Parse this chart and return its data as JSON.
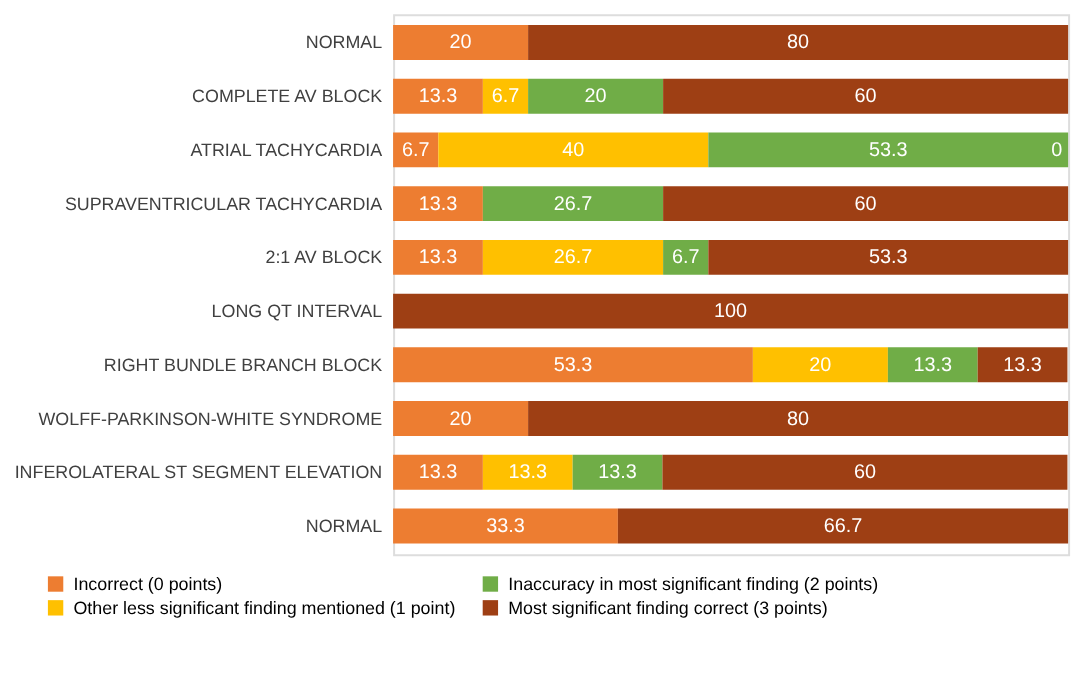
{
  "chart_data": {
    "type": "bar",
    "orientation": "horizontal",
    "stacked": true,
    "legend": "bottom",
    "categories": [
      "NORMAL",
      "COMPLETE AV BLOCK",
      "ATRIAL TACHYCARDIA",
      "SUPRAVENTRICULAR TACHYCARDIA",
      "2:1 AV BLOCK",
      "LONG QT INTERVAL",
      "RIGHT BUNDLE BRANCH BLOCK",
      "WOLFF-PARKINSON-WHITE SYNDROME",
      "INFEROLATERAL ST SEGMENT ELEVATION",
      "NORMAL"
    ],
    "series": [
      {
        "name": "Incorrect (0 points)",
        "color": "#ed7d31",
        "values": [
          20,
          13.3,
          6.7,
          13.3,
          13.3,
          0,
          53.3,
          20,
          13.3,
          33.3
        ],
        "value_labels": [
          "20",
          "13.3",
          "6.7",
          "13.3",
          "13.3",
          null,
          "53.3",
          "20",
          "13.3",
          "33.3"
        ]
      },
      {
        "name": "Other less significant finding mentioned (1 point)",
        "color": "#ffc000",
        "values": [
          0,
          6.7,
          40,
          0,
          26.7,
          0,
          20,
          0,
          13.3,
          0
        ],
        "value_labels": [
          null,
          "6.7",
          "40",
          null,
          "26.7",
          null,
          "20",
          null,
          "13.3",
          null
        ]
      },
      {
        "name": "Inaccuracy in most significant finding (2 points)",
        "color": "#70ad47",
        "values": [
          0,
          20,
          53.3,
          26.7,
          6.7,
          0,
          13.3,
          0,
          13.3,
          0
        ],
        "value_labels": [
          null,
          "20",
          "53.3",
          "26.7",
          "6.7",
          null,
          "13.3",
          null,
          "13.3",
          null
        ]
      },
      {
        "name": "Most significant finding correct (3 points)",
        "color": "#9e3f14",
        "values": [
          80,
          60,
          0,
          60,
          53.3,
          100,
          13.3,
          80,
          60,
          66.7
        ],
        "value_labels": [
          "80",
          "60",
          "0",
          "60",
          "53.3",
          "100",
          "13.3",
          "80",
          "60",
          "66.7"
        ]
      }
    ]
  }
}
